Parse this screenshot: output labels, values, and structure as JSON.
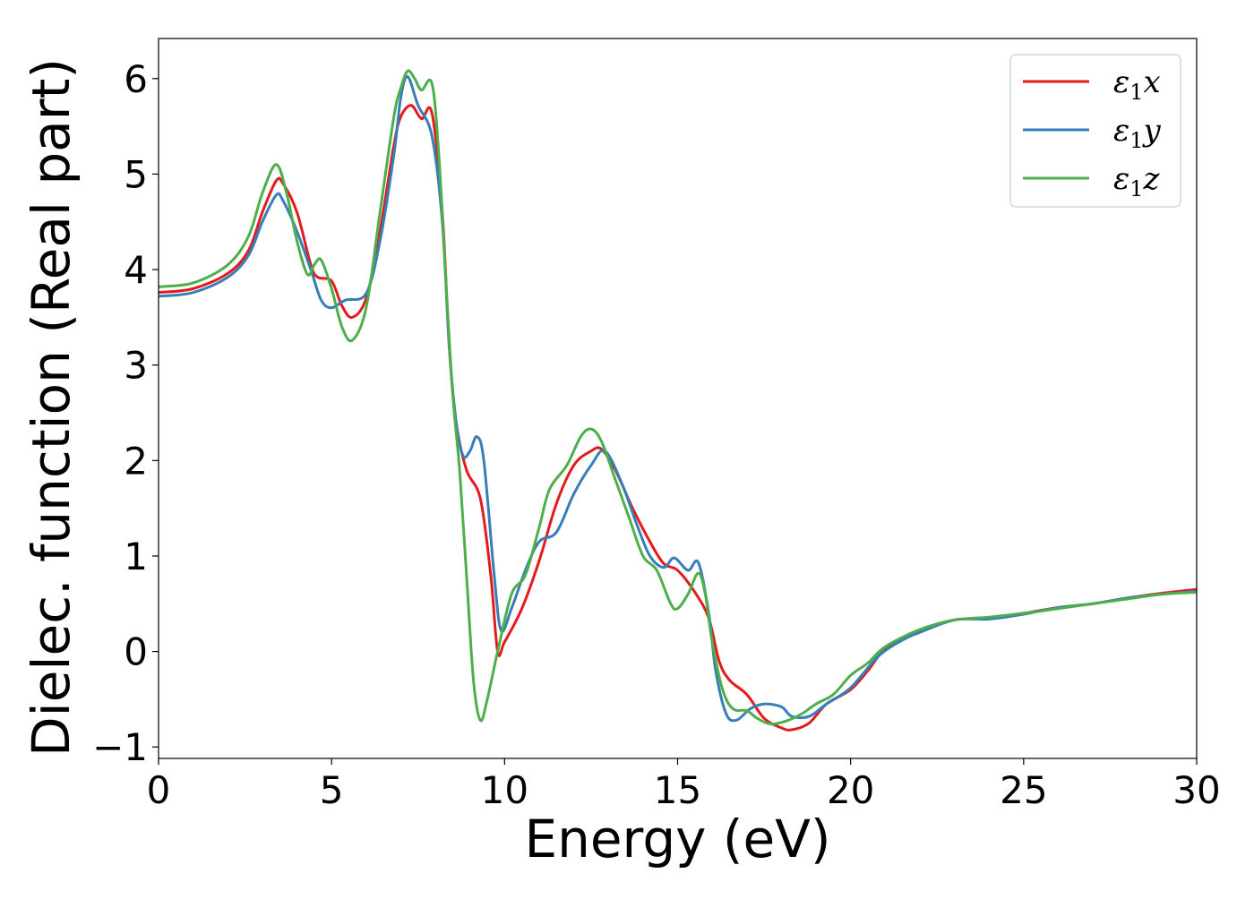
{
  "chart_data": {
    "type": "line",
    "title": "",
    "xlabel": "Energy (eV)",
    "ylabel": "Dielec. function (Real part)",
    "xlim": [
      0,
      30
    ],
    "ylim": [
      -1.12,
      6.42
    ],
    "xticks": [
      0,
      5,
      10,
      15,
      20,
      25,
      30
    ],
    "xtick_labels": [
      "0",
      "5",
      "10",
      "15",
      "20",
      "25",
      "30"
    ],
    "yticks": [
      -1,
      0,
      1,
      2,
      3,
      4,
      5,
      6
    ],
    "ytick_labels": [
      "−1",
      "0",
      "1",
      "2",
      "3",
      "4",
      "5",
      "6"
    ],
    "grid": false,
    "legend_position": "top-right",
    "series": [
      {
        "name": "ε1x",
        "sub": "1",
        "base": "ε",
        "suffix": "x",
        "color": "#e41a1c",
        "points": [
          [
            0,
            3.76
          ],
          [
            1,
            3.8
          ],
          [
            2,
            3.96
          ],
          [
            2.6,
            4.2
          ],
          [
            3.0,
            4.6
          ],
          [
            3.4,
            4.93
          ],
          [
            3.6,
            4.9
          ],
          [
            4.0,
            4.6
          ],
          [
            4.4,
            4.05
          ],
          [
            4.6,
            3.92
          ],
          [
            5.0,
            3.88
          ],
          [
            5.3,
            3.62
          ],
          [
            5.6,
            3.5
          ],
          [
            6.0,
            3.7
          ],
          [
            6.4,
            4.4
          ],
          [
            6.8,
            5.3
          ],
          [
            7.0,
            5.6
          ],
          [
            7.3,
            5.72
          ],
          [
            7.6,
            5.58
          ],
          [
            7.9,
            5.64
          ],
          [
            8.2,
            4.6
          ],
          [
            8.4,
            3.2
          ],
          [
            8.6,
            2.4
          ],
          [
            8.9,
            1.9
          ],
          [
            9.3,
            1.6
          ],
          [
            9.6,
            0.8
          ],
          [
            9.8,
            0.0
          ],
          [
            10.0,
            0.1
          ],
          [
            10.5,
            0.45
          ],
          [
            11.0,
            0.95
          ],
          [
            11.5,
            1.55
          ],
          [
            12.0,
            1.95
          ],
          [
            12.5,
            2.1
          ],
          [
            12.8,
            2.12
          ],
          [
            13.2,
            1.9
          ],
          [
            13.7,
            1.5
          ],
          [
            14.2,
            1.15
          ],
          [
            14.6,
            0.92
          ],
          [
            15.0,
            0.85
          ],
          [
            15.5,
            0.62
          ],
          [
            15.9,
            0.35
          ],
          [
            16.2,
            -0.1
          ],
          [
            16.5,
            -0.3
          ],
          [
            17.0,
            -0.45
          ],
          [
            17.5,
            -0.7
          ],
          [
            18.0,
            -0.8
          ],
          [
            18.3,
            -0.82
          ],
          [
            18.8,
            -0.75
          ],
          [
            19.3,
            -0.55
          ],
          [
            20.0,
            -0.4
          ],
          [
            20.5,
            -0.2
          ],
          [
            21.0,
            0.02
          ],
          [
            22.0,
            0.22
          ],
          [
            23.0,
            0.33
          ],
          [
            24.0,
            0.35
          ],
          [
            25.0,
            0.4
          ],
          [
            26.0,
            0.46
          ],
          [
            27.0,
            0.5
          ],
          [
            28.0,
            0.56
          ],
          [
            29.0,
            0.61
          ],
          [
            30.0,
            0.65
          ]
        ]
      },
      {
        "name": "ε1y",
        "sub": "1",
        "base": "ε",
        "suffix": "y",
        "color": "#377eb8",
        "points": [
          [
            0,
            3.72
          ],
          [
            1,
            3.76
          ],
          [
            2,
            3.92
          ],
          [
            2.6,
            4.15
          ],
          [
            3.0,
            4.5
          ],
          [
            3.4,
            4.78
          ],
          [
            3.6,
            4.72
          ],
          [
            4.0,
            4.4
          ],
          [
            4.4,
            4.0
          ],
          [
            4.7,
            3.68
          ],
          [
            5.0,
            3.6
          ],
          [
            5.4,
            3.68
          ],
          [
            6.0,
            3.75
          ],
          [
            6.4,
            4.3
          ],
          [
            6.8,
            5.2
          ],
          [
            7.0,
            5.8
          ],
          [
            7.2,
            6.02
          ],
          [
            7.5,
            5.72
          ],
          [
            7.9,
            5.4
          ],
          [
            8.2,
            4.5
          ],
          [
            8.4,
            3.2
          ],
          [
            8.6,
            2.4
          ],
          [
            8.8,
            2.05
          ],
          [
            9.0,
            2.1
          ],
          [
            9.2,
            2.25
          ],
          [
            9.4,
            2.0
          ],
          [
            9.7,
            0.8
          ],
          [
            9.9,
            0.22
          ],
          [
            10.2,
            0.45
          ],
          [
            10.6,
            0.85
          ],
          [
            11.0,
            1.15
          ],
          [
            11.5,
            1.25
          ],
          [
            12.0,
            1.65
          ],
          [
            12.5,
            1.95
          ],
          [
            12.9,
            2.1
          ],
          [
            13.4,
            1.75
          ],
          [
            13.8,
            1.35
          ],
          [
            14.2,
            1.0
          ],
          [
            14.6,
            0.88
          ],
          [
            14.9,
            0.98
          ],
          [
            15.3,
            0.85
          ],
          [
            15.6,
            0.93
          ],
          [
            15.9,
            0.4
          ],
          [
            16.1,
            -0.2
          ],
          [
            16.4,
            -0.65
          ],
          [
            16.7,
            -0.72
          ],
          [
            17.1,
            -0.6
          ],
          [
            17.5,
            -0.55
          ],
          [
            18.0,
            -0.58
          ],
          [
            18.3,
            -0.68
          ],
          [
            18.8,
            -0.68
          ],
          [
            19.3,
            -0.55
          ],
          [
            20.0,
            -0.38
          ],
          [
            20.8,
            -0.05
          ],
          [
            21.5,
            0.12
          ],
          [
            22.0,
            0.2
          ],
          [
            23.0,
            0.33
          ],
          [
            24.0,
            0.34
          ],
          [
            25.0,
            0.39
          ],
          [
            26.0,
            0.46
          ],
          [
            27.0,
            0.5
          ],
          [
            28.0,
            0.56
          ],
          [
            29.0,
            0.6
          ],
          [
            30.0,
            0.63
          ]
        ]
      },
      {
        "name": "ε1z",
        "sub": "1",
        "base": "ε",
        "suffix": "z",
        "color": "#4daf4a",
        "points": [
          [
            0,
            3.82
          ],
          [
            1,
            3.86
          ],
          [
            2,
            4.05
          ],
          [
            2.6,
            4.35
          ],
          [
            3.0,
            4.8
          ],
          [
            3.4,
            5.1
          ],
          [
            3.7,
            4.8
          ],
          [
            4.0,
            4.3
          ],
          [
            4.3,
            3.95
          ],
          [
            4.5,
            4.05
          ],
          [
            4.7,
            4.1
          ],
          [
            5.0,
            3.8
          ],
          [
            5.3,
            3.4
          ],
          [
            5.6,
            3.26
          ],
          [
            6.0,
            3.6
          ],
          [
            6.4,
            4.6
          ],
          [
            6.8,
            5.6
          ],
          [
            7.0,
            5.9
          ],
          [
            7.2,
            6.08
          ],
          [
            7.4,
            6.0
          ],
          [
            7.6,
            5.88
          ],
          [
            7.9,
            5.95
          ],
          [
            8.1,
            5.2
          ],
          [
            8.3,
            3.9
          ],
          [
            8.5,
            2.7
          ],
          [
            8.7,
            1.9
          ],
          [
            8.9,
            0.8
          ],
          [
            9.1,
            -0.3
          ],
          [
            9.3,
            -0.72
          ],
          [
            9.5,
            -0.5
          ],
          [
            9.8,
            0.0
          ],
          [
            10.2,
            0.6
          ],
          [
            10.6,
            0.8
          ],
          [
            11.0,
            1.3
          ],
          [
            11.3,
            1.7
          ],
          [
            11.8,
            1.95
          ],
          [
            12.2,
            2.25
          ],
          [
            12.5,
            2.33
          ],
          [
            12.8,
            2.2
          ],
          [
            13.2,
            1.8
          ],
          [
            13.6,
            1.4
          ],
          [
            14.0,
            1.0
          ],
          [
            14.4,
            0.85
          ],
          [
            14.8,
            0.5
          ],
          [
            15.0,
            0.45
          ],
          [
            15.3,
            0.6
          ],
          [
            15.6,
            0.82
          ],
          [
            15.8,
            0.6
          ],
          [
            16.0,
            0.1
          ],
          [
            16.3,
            -0.4
          ],
          [
            16.6,
            -0.6
          ],
          [
            17.0,
            -0.62
          ],
          [
            17.3,
            -0.7
          ],
          [
            17.7,
            -0.76
          ],
          [
            18.2,
            -0.72
          ],
          [
            18.6,
            -0.65
          ],
          [
            19.0,
            -0.55
          ],
          [
            19.5,
            -0.45
          ],
          [
            20.0,
            -0.25
          ],
          [
            20.5,
            -0.12
          ],
          [
            21.0,
            0.05
          ],
          [
            22.0,
            0.23
          ],
          [
            23.0,
            0.33
          ],
          [
            24.0,
            0.36
          ],
          [
            25.0,
            0.4
          ],
          [
            26.0,
            0.45
          ],
          [
            27.0,
            0.5
          ],
          [
            28.0,
            0.55
          ],
          [
            29.0,
            0.6
          ],
          [
            30.0,
            0.62
          ]
        ]
      }
    ]
  }
}
